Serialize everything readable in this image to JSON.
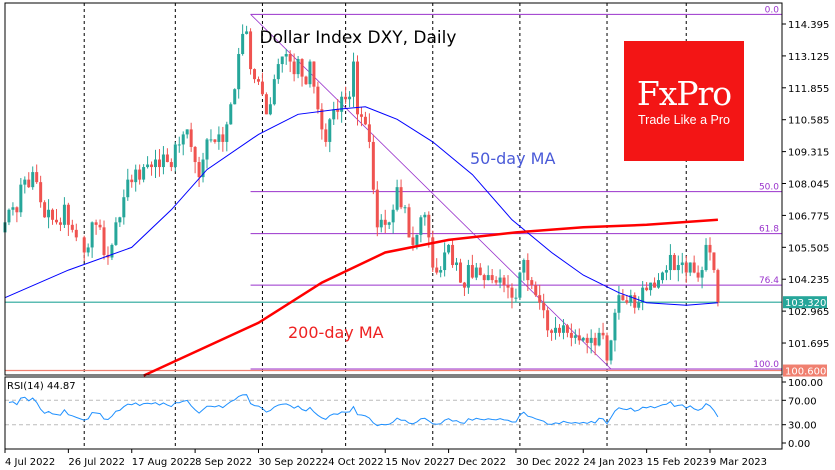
{
  "chart_data": {
    "type": "candlestick",
    "title": "Dollar Index DXY, Daily",
    "annotations": {
      "ma50": "50-day MA",
      "ma200": "200-day MA"
    },
    "colors": {
      "bull": "#26a69a",
      "bear": "#ef5350",
      "ma50": "#0000ff",
      "ma200": "#ff0000",
      "fib": "#9932cc",
      "rsi": "#1e90ff",
      "current": "#26a69a",
      "low_line": "#f08070"
    },
    "y_ticks": [
      "114.395",
      "113.125",
      "111.855",
      "110.585",
      "109.315",
      "108.045",
      "106.775",
      "105.505",
      "104.235",
      "102.965",
      "101.695"
    ],
    "ylim": [
      100.45,
      114.9
    ],
    "x_ticks": [
      {
        "date": "2022-07-04",
        "label": "4 Jul 2022"
      },
      {
        "date": "2022-07-26",
        "label": "26 Jul 2022"
      },
      {
        "date": "2022-08-17",
        "label": "17 Aug 2022"
      },
      {
        "date": "2022-09-08",
        "label": "8 Sep 2022"
      },
      {
        "date": "2022-09-30",
        "label": "30 Sep 2022"
      },
      {
        "date": "2022-10-24",
        "label": "24 Oct 2022"
      },
      {
        "date": "2022-11-15",
        "label": "15 Nov 2022"
      },
      {
        "date": "2022-12-07",
        "label": "7 Dec 2022"
      },
      {
        "date": "2022-12-30",
        "label": "30 Dec 2022"
      },
      {
        "date": "2023-01-24",
        "label": "24 Jan 2023"
      },
      {
        "date": "2023-02-15",
        "label": "15 Feb 2023"
      },
      {
        "date": "2023-03-09",
        "label": "9 Mar 2023"
      }
    ],
    "month_separators": [
      "2022-08-01",
      "2022-09-01",
      "2022-10-03",
      "2022-11-01",
      "2022-12-01",
      "2023-01-02",
      "2023-02-01",
      "2023-03-01"
    ],
    "daily_closes_by_month": {
      "2022-07": [
        106.5,
        107.0,
        107.1,
        106.9,
        108.0,
        108.2,
        107.9,
        108.5,
        108.1,
        107.3,
        106.7,
        107.0,
        106.6,
        106.5,
        106.4,
        107.2,
        106.4,
        106.2,
        105.9
      ],
      "2022-08": [
        105.3,
        105.5,
        106.5,
        106.4,
        106.3,
        105.2,
        105.1,
        105.6,
        106.5,
        106.7,
        107.5,
        108.2,
        108.1,
        108.6,
        108.2,
        108.7,
        108.8,
        108.7,
        109.0,
        108.7,
        109.2,
        108.9,
        108.7
      ],
      "2022-09": [
        109.6,
        109.6,
        110.0,
        110.2,
        109.5,
        108.9,
        108.3,
        109.0,
        109.8,
        109.8,
        109.7,
        110.0,
        109.7,
        110.4,
        111.2,
        111.8,
        113.2,
        114.0,
        114.1,
        112.6,
        112.2,
        112.1
      ],
      "2022-10": [
        111.6,
        110.8,
        111.2,
        112.2,
        112.8,
        113.1,
        113.2,
        112.9,
        112.4,
        113.0,
        112.3,
        112.0,
        112.9,
        111.9,
        111.0,
        110.2,
        109.7,
        110.6,
        111.0,
        110.9,
        111.5
      ],
      "2022-11": [
        111.4,
        111.5,
        112.9,
        110.8,
        110.7,
        110.4,
        109.7,
        107.8,
        106.3,
        106.6,
        106.4,
        106.5,
        107.0,
        107.9,
        107.1,
        107.1,
        105.9,
        105.6,
        106.0,
        106.7,
        106.8,
        105.9
      ],
      "2022-12": [
        104.7,
        104.5,
        104.6,
        105.3,
        105.6,
        104.8,
        104.9,
        104.1,
        103.9,
        104.8,
        104.3,
        104.7,
        104.4,
        104.2,
        104.4,
        104.2,
        104.1,
        104.3,
        104.0,
        103.9,
        103.5,
        103.5
      ],
      "2023-01": [
        104.5,
        105.0,
        104.2,
        104.0,
        103.6,
        103.3,
        103.0,
        102.2,
        102.1,
        102.3,
        102.1,
        102.4,
        102.1,
        101.9,
        102.0,
        101.8,
        101.9,
        101.7,
        101.9,
        101.6,
        102.1,
        102.0
      ],
      "2023-02": [
        101.0,
        101.8,
        102.9,
        103.6,
        103.4,
        103.3,
        103.6,
        103.1,
        103.3,
        103.9,
        103.8,
        104.1,
        103.9,
        104.2,
        104.5,
        104.6,
        105.2,
        104.6,
        104.8,
        104.9
      ],
      "2023-03": [
        104.5,
        104.9,
        104.5,
        104.3,
        104.6,
        105.6,
        105.3,
        104.6,
        103.3
      ]
    },
    "ma50": [
      [
        "2022-07-04",
        103.5
      ],
      [
        "2022-07-26",
        104.6
      ],
      [
        "2022-08-17",
        105.5
      ],
      [
        "2022-08-31",
        107.0
      ],
      [
        "2022-09-13",
        108.6
      ],
      [
        "2022-09-30",
        110.0
      ],
      [
        "2022-10-14",
        110.8
      ],
      [
        "2022-10-28",
        111.0
      ],
      [
        "2022-11-08",
        111.1
      ],
      [
        "2022-11-18",
        110.6
      ],
      [
        "2022-12-01",
        109.7
      ],
      [
        "2022-12-15",
        108.4
      ],
      [
        "2022-12-29",
        106.6
      ],
      [
        "2023-01-12",
        105.3
      ],
      [
        "2023-01-24",
        104.4
      ],
      [
        "2023-02-06",
        103.7
      ],
      [
        "2023-02-15",
        103.3
      ],
      [
        "2023-03-01",
        103.2
      ],
      [
        "2023-03-13",
        103.3
      ]
    ],
    "ma200": [
      [
        "2022-08-22",
        100.4
      ],
      [
        "2022-09-30",
        102.5
      ],
      [
        "2022-10-24",
        104.1
      ],
      [
        "2022-11-15",
        105.3
      ],
      [
        "2022-12-07",
        105.8
      ],
      [
        "2022-12-30",
        106.1
      ],
      [
        "2023-01-24",
        106.3
      ],
      [
        "2023-02-15",
        106.4
      ],
      [
        "2023-03-13",
        106.6
      ]
    ],
    "fibonacci": {
      "from": {
        "date": "2022-09-28",
        "price": 114.78
      },
      "to": {
        "date": "2023-02-02",
        "price": 100.66
      },
      "levels": [
        {
          "label": "0.0",
          "price": 114.78
        },
        {
          "label": "50.0",
          "price": 107.72
        },
        {
          "label": "61.8",
          "price": 106.05
        },
        {
          "label": "76.4",
          "price": 104.0
        },
        {
          "label": "100.0",
          "price": 100.66
        }
      ]
    },
    "current_price": {
      "value": 103.32,
      "label": "103.320"
    },
    "low_line": {
      "value": 100.6,
      "label": "100.600"
    },
    "rsi": {
      "label": "RSI(14) 44.87",
      "period": 14,
      "levels": [
        70,
        30
      ],
      "ticks": [
        "100.00",
        "70.00",
        "30.00",
        "0.00"
      ]
    }
  },
  "logo": {
    "brand": "FxPro",
    "tagline": "Trade Like a Pro"
  }
}
